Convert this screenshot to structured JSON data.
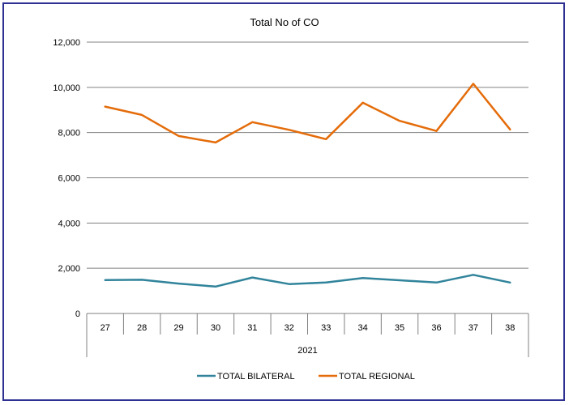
{
  "chart_data": {
    "type": "line",
    "title": "Total No of CO",
    "categories": [
      "27",
      "28",
      "29",
      "30",
      "31",
      "32",
      "33",
      "34",
      "35",
      "36",
      "37",
      "38"
    ],
    "group_label": "2021",
    "ylim": [
      0,
      12000
    ],
    "yticks": [
      0,
      2000,
      4000,
      6000,
      8000,
      10000,
      12000
    ],
    "ytick_labels": [
      "0",
      "2,000",
      "4,000",
      "6,000",
      "8,000",
      "10,000",
      "12,000"
    ],
    "grid": true,
    "legend_position": "bottom",
    "series": [
      {
        "name": "TOTAL BILATERAL",
        "color": "#31849b",
        "values": [
          1480,
          1490,
          1320,
          1190,
          1590,
          1300,
          1370,
          1570,
          1470,
          1370,
          1710,
          1370
        ]
      },
      {
        "name": "TOTAL REGIONAL",
        "color": "#e46c0a",
        "values": [
          9150,
          8780,
          7850,
          7560,
          8460,
          8120,
          7710,
          9320,
          8520,
          8070,
          10160,
          8140
        ]
      }
    ]
  }
}
